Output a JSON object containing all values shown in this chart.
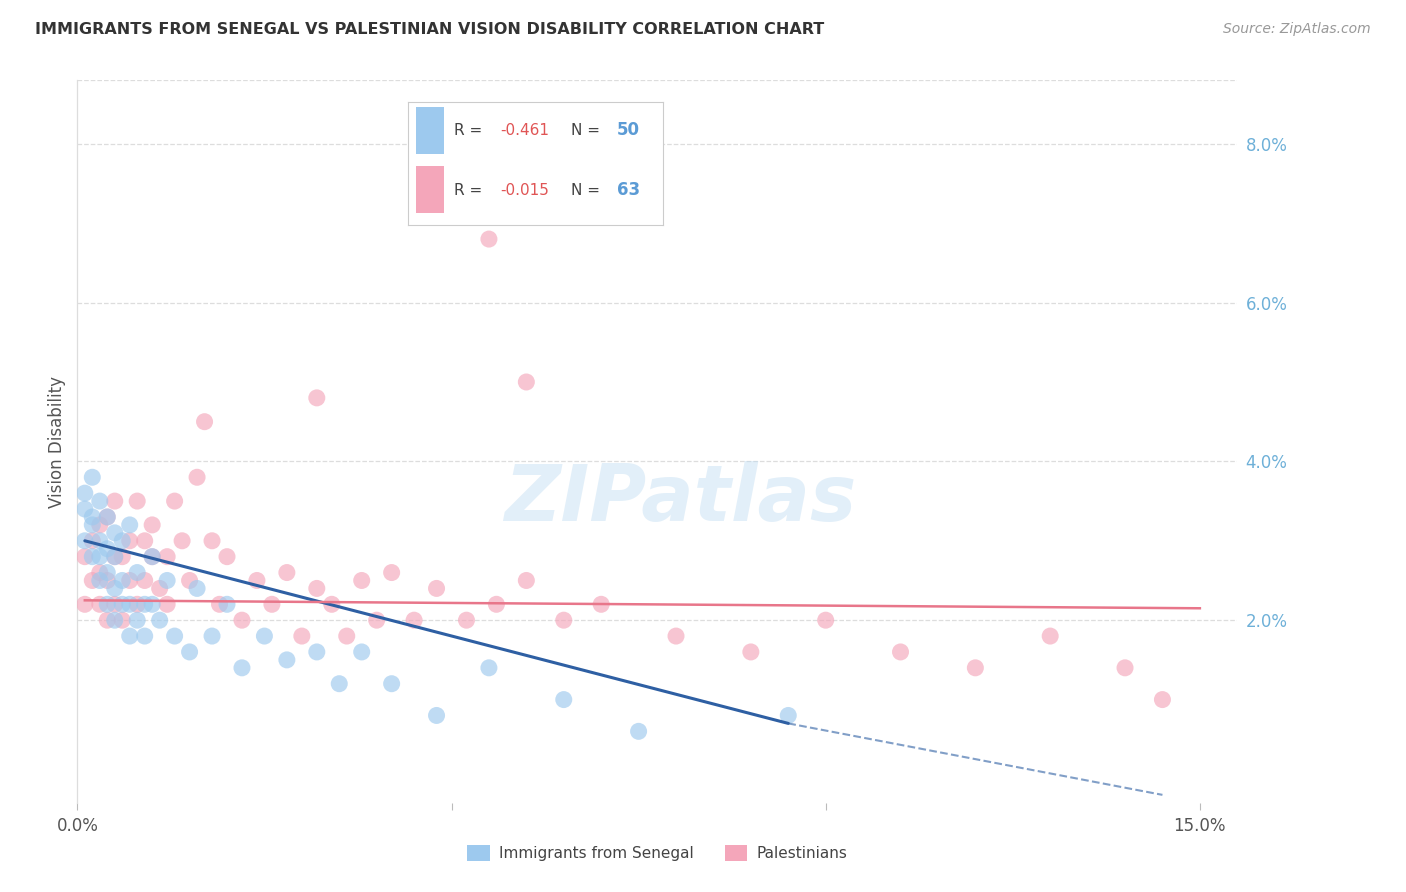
{
  "title": "IMMIGRANTS FROM SENEGAL VS PALESTINIAN VISION DISABILITY CORRELATION CHART",
  "source": "Source: ZipAtlas.com",
  "ylabel": "Vision Disability",
  "xlim": [
    0.0,
    0.155
  ],
  "ylim": [
    -0.003,
    0.088
  ],
  "xticks": [
    0.0,
    0.05,
    0.1,
    0.15
  ],
  "xtick_labels": [
    "0.0%",
    "",
    "",
    "15.0%"
  ],
  "ytick_right": [
    0.02,
    0.04,
    0.06,
    0.08
  ],
  "ytick_right_labels": [
    "2.0%",
    "4.0%",
    "6.0%",
    "8.0%"
  ],
  "series1_label": "Immigrants from Senegal",
  "series2_label": "Palestinians",
  "series1_color": "#9DC9EE",
  "series2_color": "#F4A6BA",
  "trend1_color": "#2E5FA3",
  "trend2_color": "#E8768A",
  "watermark": "ZIPatlas",
  "background_color": "#FFFFFF",
  "grid_color": "#DDDDDD",
  "right_axis_color": "#6EB0D8",
  "title_color": "#333333",
  "source_color": "#999999",
  "senegal_x": [
    0.001,
    0.001,
    0.001,
    0.002,
    0.002,
    0.002,
    0.002,
    0.003,
    0.003,
    0.003,
    0.003,
    0.004,
    0.004,
    0.004,
    0.004,
    0.005,
    0.005,
    0.005,
    0.005,
    0.006,
    0.006,
    0.006,
    0.007,
    0.007,
    0.007,
    0.008,
    0.008,
    0.009,
    0.009,
    0.01,
    0.01,
    0.011,
    0.012,
    0.013,
    0.015,
    0.016,
    0.018,
    0.02,
    0.022,
    0.025,
    0.028,
    0.032,
    0.035,
    0.038,
    0.042,
    0.048,
    0.055,
    0.065,
    0.075,
    0.095
  ],
  "senegal_y": [
    0.034,
    0.036,
    0.03,
    0.033,
    0.028,
    0.038,
    0.032,
    0.035,
    0.028,
    0.025,
    0.03,
    0.033,
    0.026,
    0.029,
    0.022,
    0.031,
    0.028,
    0.024,
    0.02,
    0.03,
    0.025,
    0.022,
    0.032,
    0.022,
    0.018,
    0.026,
    0.02,
    0.022,
    0.018,
    0.028,
    0.022,
    0.02,
    0.025,
    0.018,
    0.016,
    0.024,
    0.018,
    0.022,
    0.014,
    0.018,
    0.015,
    0.016,
    0.012,
    0.016,
    0.012,
    0.008,
    0.014,
    0.01,
    0.006,
    0.008
  ],
  "pales_x": [
    0.001,
    0.001,
    0.002,
    0.002,
    0.003,
    0.003,
    0.003,
    0.004,
    0.004,
    0.004,
    0.005,
    0.005,
    0.005,
    0.006,
    0.006,
    0.007,
    0.007,
    0.008,
    0.008,
    0.009,
    0.009,
    0.01,
    0.01,
    0.011,
    0.012,
    0.012,
    0.013,
    0.014,
    0.015,
    0.016,
    0.017,
    0.018,
    0.019,
    0.02,
    0.022,
    0.024,
    0.026,
    0.028,
    0.03,
    0.032,
    0.034,
    0.036,
    0.038,
    0.04,
    0.042,
    0.045,
    0.048,
    0.052,
    0.056,
    0.06,
    0.065,
    0.07,
    0.08,
    0.09,
    0.1,
    0.11,
    0.12,
    0.13,
    0.14,
    0.145,
    0.055,
    0.032,
    0.06
  ],
  "pales_y": [
    0.022,
    0.028,
    0.025,
    0.03,
    0.022,
    0.026,
    0.032,
    0.02,
    0.025,
    0.033,
    0.022,
    0.028,
    0.035,
    0.02,
    0.028,
    0.025,
    0.03,
    0.022,
    0.035,
    0.025,
    0.03,
    0.028,
    0.032,
    0.024,
    0.028,
    0.022,
    0.035,
    0.03,
    0.025,
    0.038,
    0.045,
    0.03,
    0.022,
    0.028,
    0.02,
    0.025,
    0.022,
    0.026,
    0.018,
    0.024,
    0.022,
    0.018,
    0.025,
    0.02,
    0.026,
    0.02,
    0.024,
    0.02,
    0.022,
    0.025,
    0.02,
    0.022,
    0.018,
    0.016,
    0.02,
    0.016,
    0.014,
    0.018,
    0.014,
    0.01,
    0.068,
    0.048,
    0.05
  ],
  "trend1_x_start": 0.001,
  "trend1_x_solid_end": 0.095,
  "trend1_x_dash_end": 0.145,
  "trend1_y_start": 0.03,
  "trend1_y_solid_end": 0.007,
  "trend1_y_dash_end": -0.002,
  "trend2_x_start": 0.001,
  "trend2_x_end": 0.15,
  "trend2_y_start": 0.0225,
  "trend2_y_end": 0.0215
}
